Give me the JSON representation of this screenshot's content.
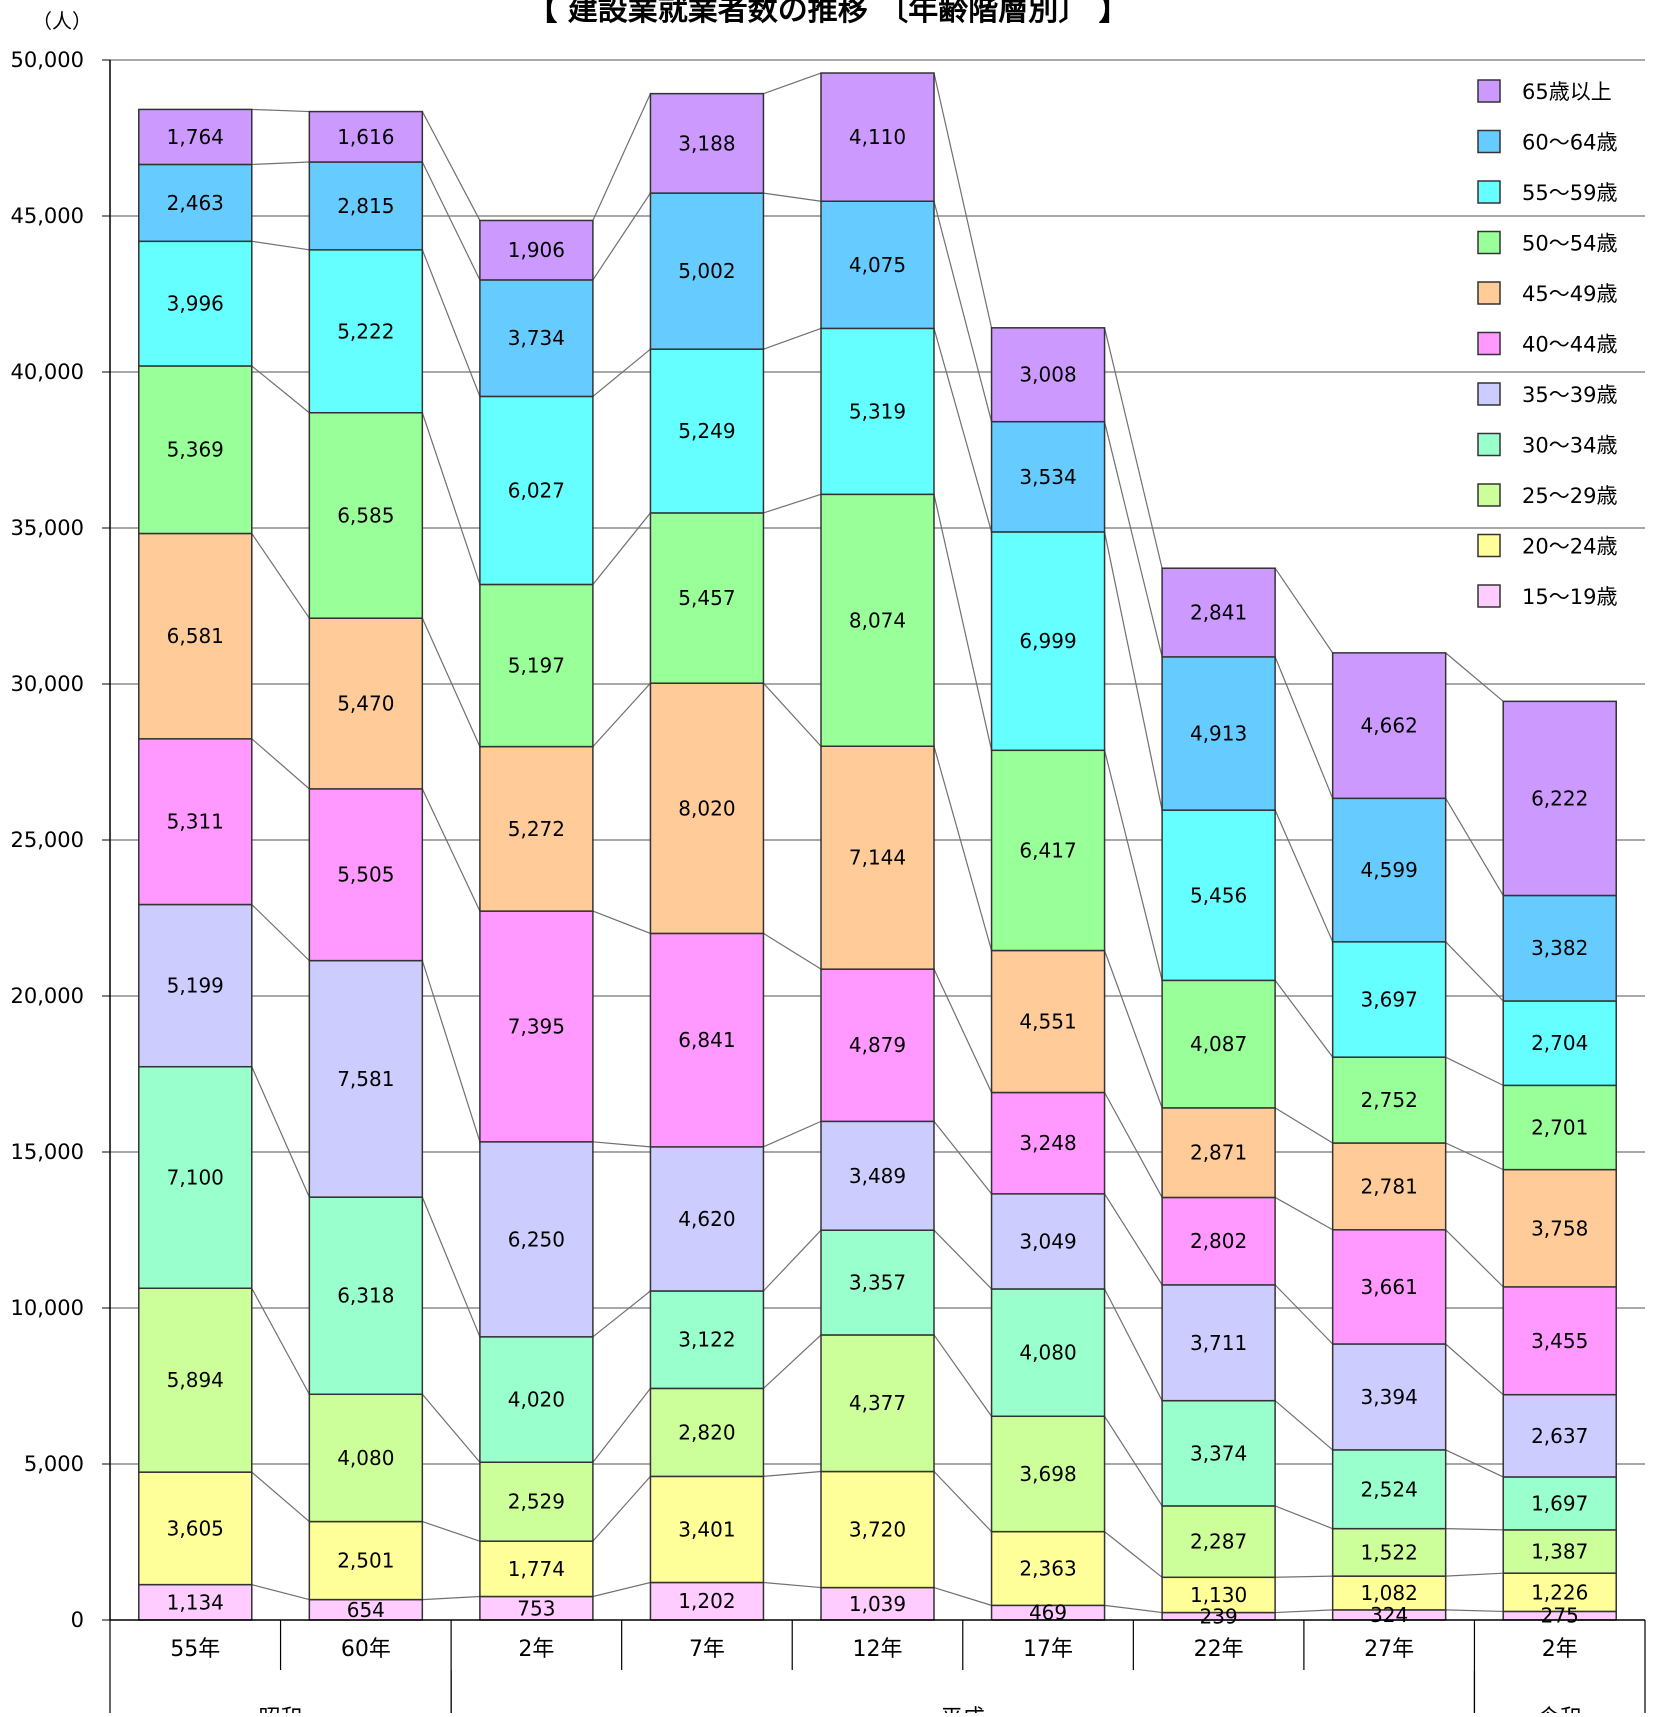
{
  "chart_data": {
    "type": "bar",
    "stacked": true,
    "title": "【 建設業就業者数の推移 〔年齢階層別〕 】",
    "y_unit_label": "（人）",
    "ylim": [
      0,
      50000
    ],
    "y_ticks": [
      "0",
      "5,000",
      "10,000",
      "15,000",
      "20,000",
      "25,000",
      "30,000",
      "35,000",
      "40,000",
      "45,000",
      "50,000"
    ],
    "y_tick_values": [
      0,
      5000,
      10000,
      15000,
      20000,
      25000,
      30000,
      35000,
      40000,
      45000,
      50000
    ],
    "categories": [
      "55年",
      "60年",
      "2年",
      "7年",
      "12年",
      "17年",
      "22年",
      "27年",
      "2年"
    ],
    "eras": [
      {
        "label": "昭和",
        "from": 0,
        "to": 1
      },
      {
        "label": "平成",
        "from": 2,
        "to": 7
      },
      {
        "label": "令和",
        "from": 8,
        "to": 8
      }
    ],
    "grid": true,
    "legend_position": "top-right",
    "connector_lines": true,
    "series": [
      {
        "name": "15～19歳",
        "color": "#ffccff",
        "values": [
          1134,
          654,
          753,
          1202,
          1039,
          469,
          239,
          324,
          275
        ],
        "labels": [
          "1,134",
          "654",
          "753",
          "1,202",
          "1,039",
          "469",
          "239",
          "324",
          "275"
        ]
      },
      {
        "name": "20～24歳",
        "color": "#ffff99",
        "values": [
          3605,
          2501,
          1774,
          3401,
          3720,
          2363,
          1130,
          1082,
          1226
        ],
        "labels": [
          "3,605",
          "2,501",
          "1,774",
          "3,401",
          "3,720",
          "2,363",
          "1,130",
          "1,082",
          "1,226"
        ]
      },
      {
        "name": "25～29歳",
        "color": "#ccff99",
        "values": [
          5894,
          4080,
          2529,
          2820,
          4377,
          3698,
          2287,
          1522,
          1387
        ],
        "labels": [
          "5,894",
          "4,080",
          "2,529",
          "2,820",
          "4,377",
          "3,698",
          "2,287",
          "1,522",
          "1,387"
        ]
      },
      {
        "name": "30～34歳",
        "color": "#99ffcc",
        "values": [
          7100,
          6318,
          4020,
          3122,
          3357,
          4080,
          3374,
          2524,
          1697
        ],
        "labels": [
          "7,100",
          "6,318",
          "4,020",
          "3,122",
          "3,357",
          "4,080",
          "3,374",
          "2,524",
          "1,697"
        ]
      },
      {
        "name": "35～39歳",
        "color": "#ccccff",
        "values": [
          5199,
          7581,
          6250,
          4620,
          3489,
          3049,
          3711,
          3394,
          2637
        ],
        "labels": [
          "5,199",
          "7,581",
          "6,250",
          "4,620",
          "3,489",
          "3,049",
          "3,711",
          "3,394",
          "2,637"
        ]
      },
      {
        "name": "40～44歳",
        "color": "#ff99ff",
        "values": [
          5311,
          5505,
          7395,
          6841,
          4879,
          3248,
          2802,
          3661,
          3455
        ],
        "labels": [
          "5,311",
          "5,505",
          "7,395",
          "6,841",
          "4,879",
          "3,248",
          "2,802",
          "3,661",
          "3,455"
        ]
      },
      {
        "name": "45～49歳",
        "color": "#ffcc99",
        "values": [
          6581,
          5470,
          5272,
          8020,
          7144,
          4551,
          2871,
          2781,
          3758
        ],
        "labels": [
          "6,581",
          "5,470",
          "5,272",
          "8,020",
          "7,144",
          "4,551",
          "2,871",
          "2,781",
          "3,758"
        ]
      },
      {
        "name": "50～54歳",
        "color": "#99ff99",
        "values": [
          5369,
          6585,
          5197,
          5457,
          8074,
          6417,
          4087,
          2752,
          2701
        ],
        "labels": [
          "5,369",
          "6,585",
          "5,197",
          "5,457",
          "8,074",
          "6,417",
          "4,087",
          "2,752",
          "2,701"
        ]
      },
      {
        "name": "55～59歳",
        "color": "#66ffff",
        "values": [
          3996,
          5222,
          6027,
          5249,
          5319,
          6999,
          5456,
          3697,
          2704
        ],
        "labels": [
          "3,996",
          "5,222",
          "6,027",
          "5,249",
          "5,319",
          "6,999",
          "5,456",
          "3,697",
          "2,704"
        ]
      },
      {
        "name": "60～64歳",
        "color": "#66ccff",
        "values": [
          2463,
          2815,
          3734,
          5002,
          4075,
          3534,
          4913,
          4599,
          3382
        ],
        "labels": [
          "2,463",
          "2,815",
          "3,734",
          "5,002",
          "4,075",
          "3,534",
          "4,913",
          "4,599",
          "3,382"
        ]
      },
      {
        "name": "65歳以上",
        "color": "#cc99ff",
        "values": [
          1764,
          1616,
          1906,
          3188,
          4110,
          3008,
          2841,
          4662,
          6222
        ],
        "labels": [
          "1,764",
          "1,616",
          "1,906",
          "3,188",
          "4,110",
          "3,008",
          "2,841",
          "4,662",
          "6,222"
        ]
      }
    ]
  }
}
